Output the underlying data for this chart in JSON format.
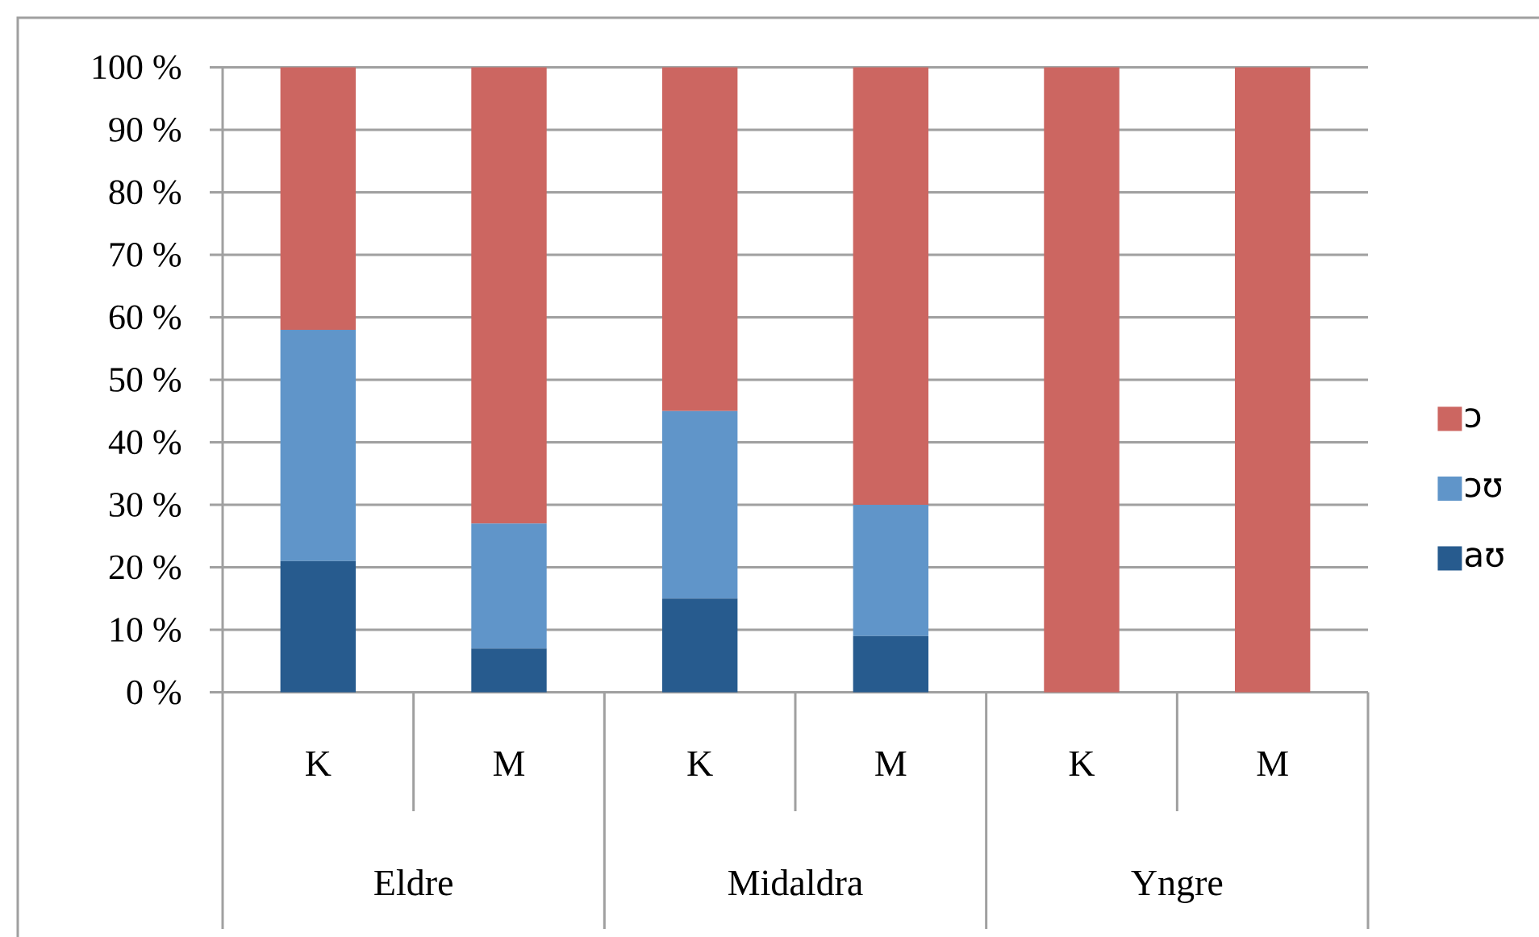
{
  "chart_data": {
    "type": "bar",
    "stacked": true,
    "categories": [
      "K",
      "M",
      "K",
      "M",
      "K",
      "M"
    ],
    "series": [
      {
        "name": "aʊ",
        "color": "#275b8e",
        "values": [
          21,
          7,
          15,
          9,
          0,
          0
        ]
      },
      {
        "name": "ɔʊ",
        "color": "#6095c9",
        "values": [
          37,
          20,
          30,
          21,
          0,
          0
        ]
      },
      {
        "name": "ɔ",
        "color": "#cc6661",
        "values": [
          42,
          73,
          55,
          70,
          100,
          100
        ]
      }
    ],
    "ylim": [
      0,
      100
    ],
    "yticks": [
      {
        "value": 0,
        "label": "0 %"
      },
      {
        "value": 10,
        "label": "10 %"
      },
      {
        "value": 20,
        "label": "20 %"
      },
      {
        "value": 30,
        "label": "30 %"
      },
      {
        "value": 40,
        "label": "40 %"
      },
      {
        "value": 50,
        "label": "50 %"
      },
      {
        "value": 60,
        "label": "60 %"
      },
      {
        "value": 70,
        "label": "70 %"
      },
      {
        "value": 80,
        "label": "80 %"
      },
      {
        "value": 90,
        "label": "90 %"
      },
      {
        "value": 100,
        "label": "100 %"
      }
    ],
    "grid": "y",
    "legend": "right",
    "annotations": [
      "Eldre",
      "Midaldra",
      "Yngre"
    ]
  }
}
